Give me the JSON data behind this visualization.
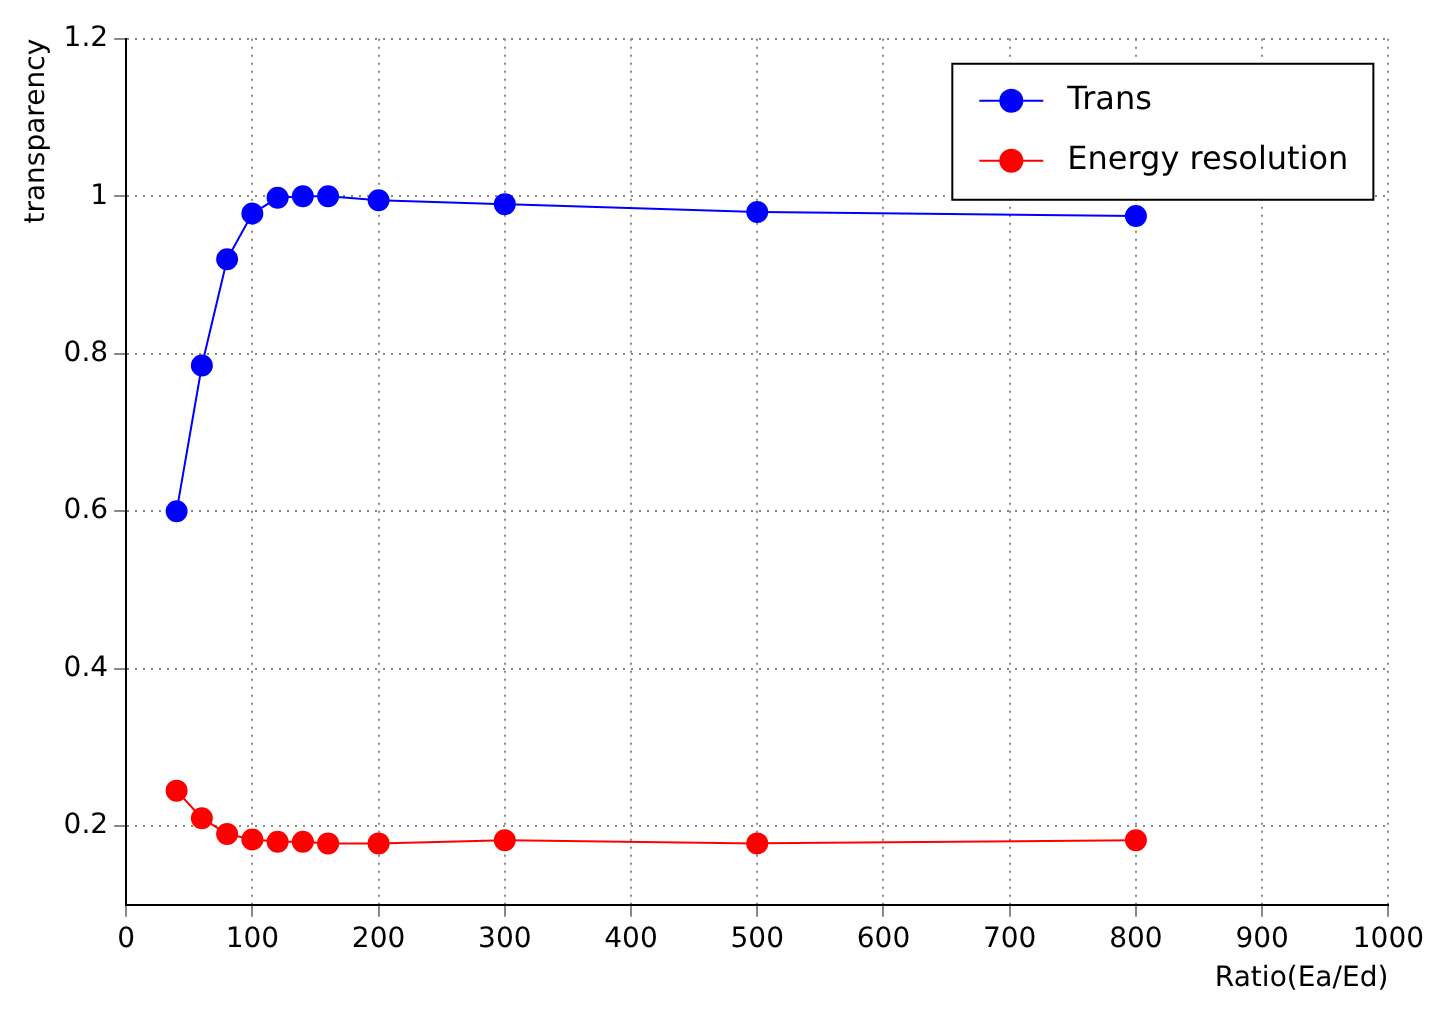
{
  "chart_data": {
    "type": "line",
    "xlabel": "Ratio(Ea/Ed)",
    "ylabel": "transparency",
    "x": [
      40,
      60,
      80,
      100,
      120,
      140,
      160,
      200,
      300,
      500,
      800
    ],
    "series": [
      {
        "name": "Trans",
        "color": "#0000ff",
        "values": [
          0.6,
          0.785,
          0.92,
          0.978,
          0.998,
          1.0,
          1.0,
          0.995,
          0.99,
          0.98,
          0.975
        ]
      },
      {
        "name": "Energy resolution",
        "color": "#ff0000",
        "values": [
          0.245,
          0.21,
          0.19,
          0.183,
          0.18,
          0.18,
          0.178,
          0.178,
          0.182,
          0.178,
          0.182
        ]
      }
    ],
    "xlim": [
      0,
      1000
    ],
    "xticks": [
      0,
      100,
      200,
      300,
      400,
      500,
      600,
      700,
      800,
      900,
      1000
    ],
    "ylim": [
      0.1,
      1.2
    ],
    "yticks": [
      0.2,
      0.4,
      0.6,
      0.8,
      1,
      1.2
    ],
    "grid": true,
    "legend": "top right",
    "marker": "circle",
    "line_style": "solid"
  }
}
